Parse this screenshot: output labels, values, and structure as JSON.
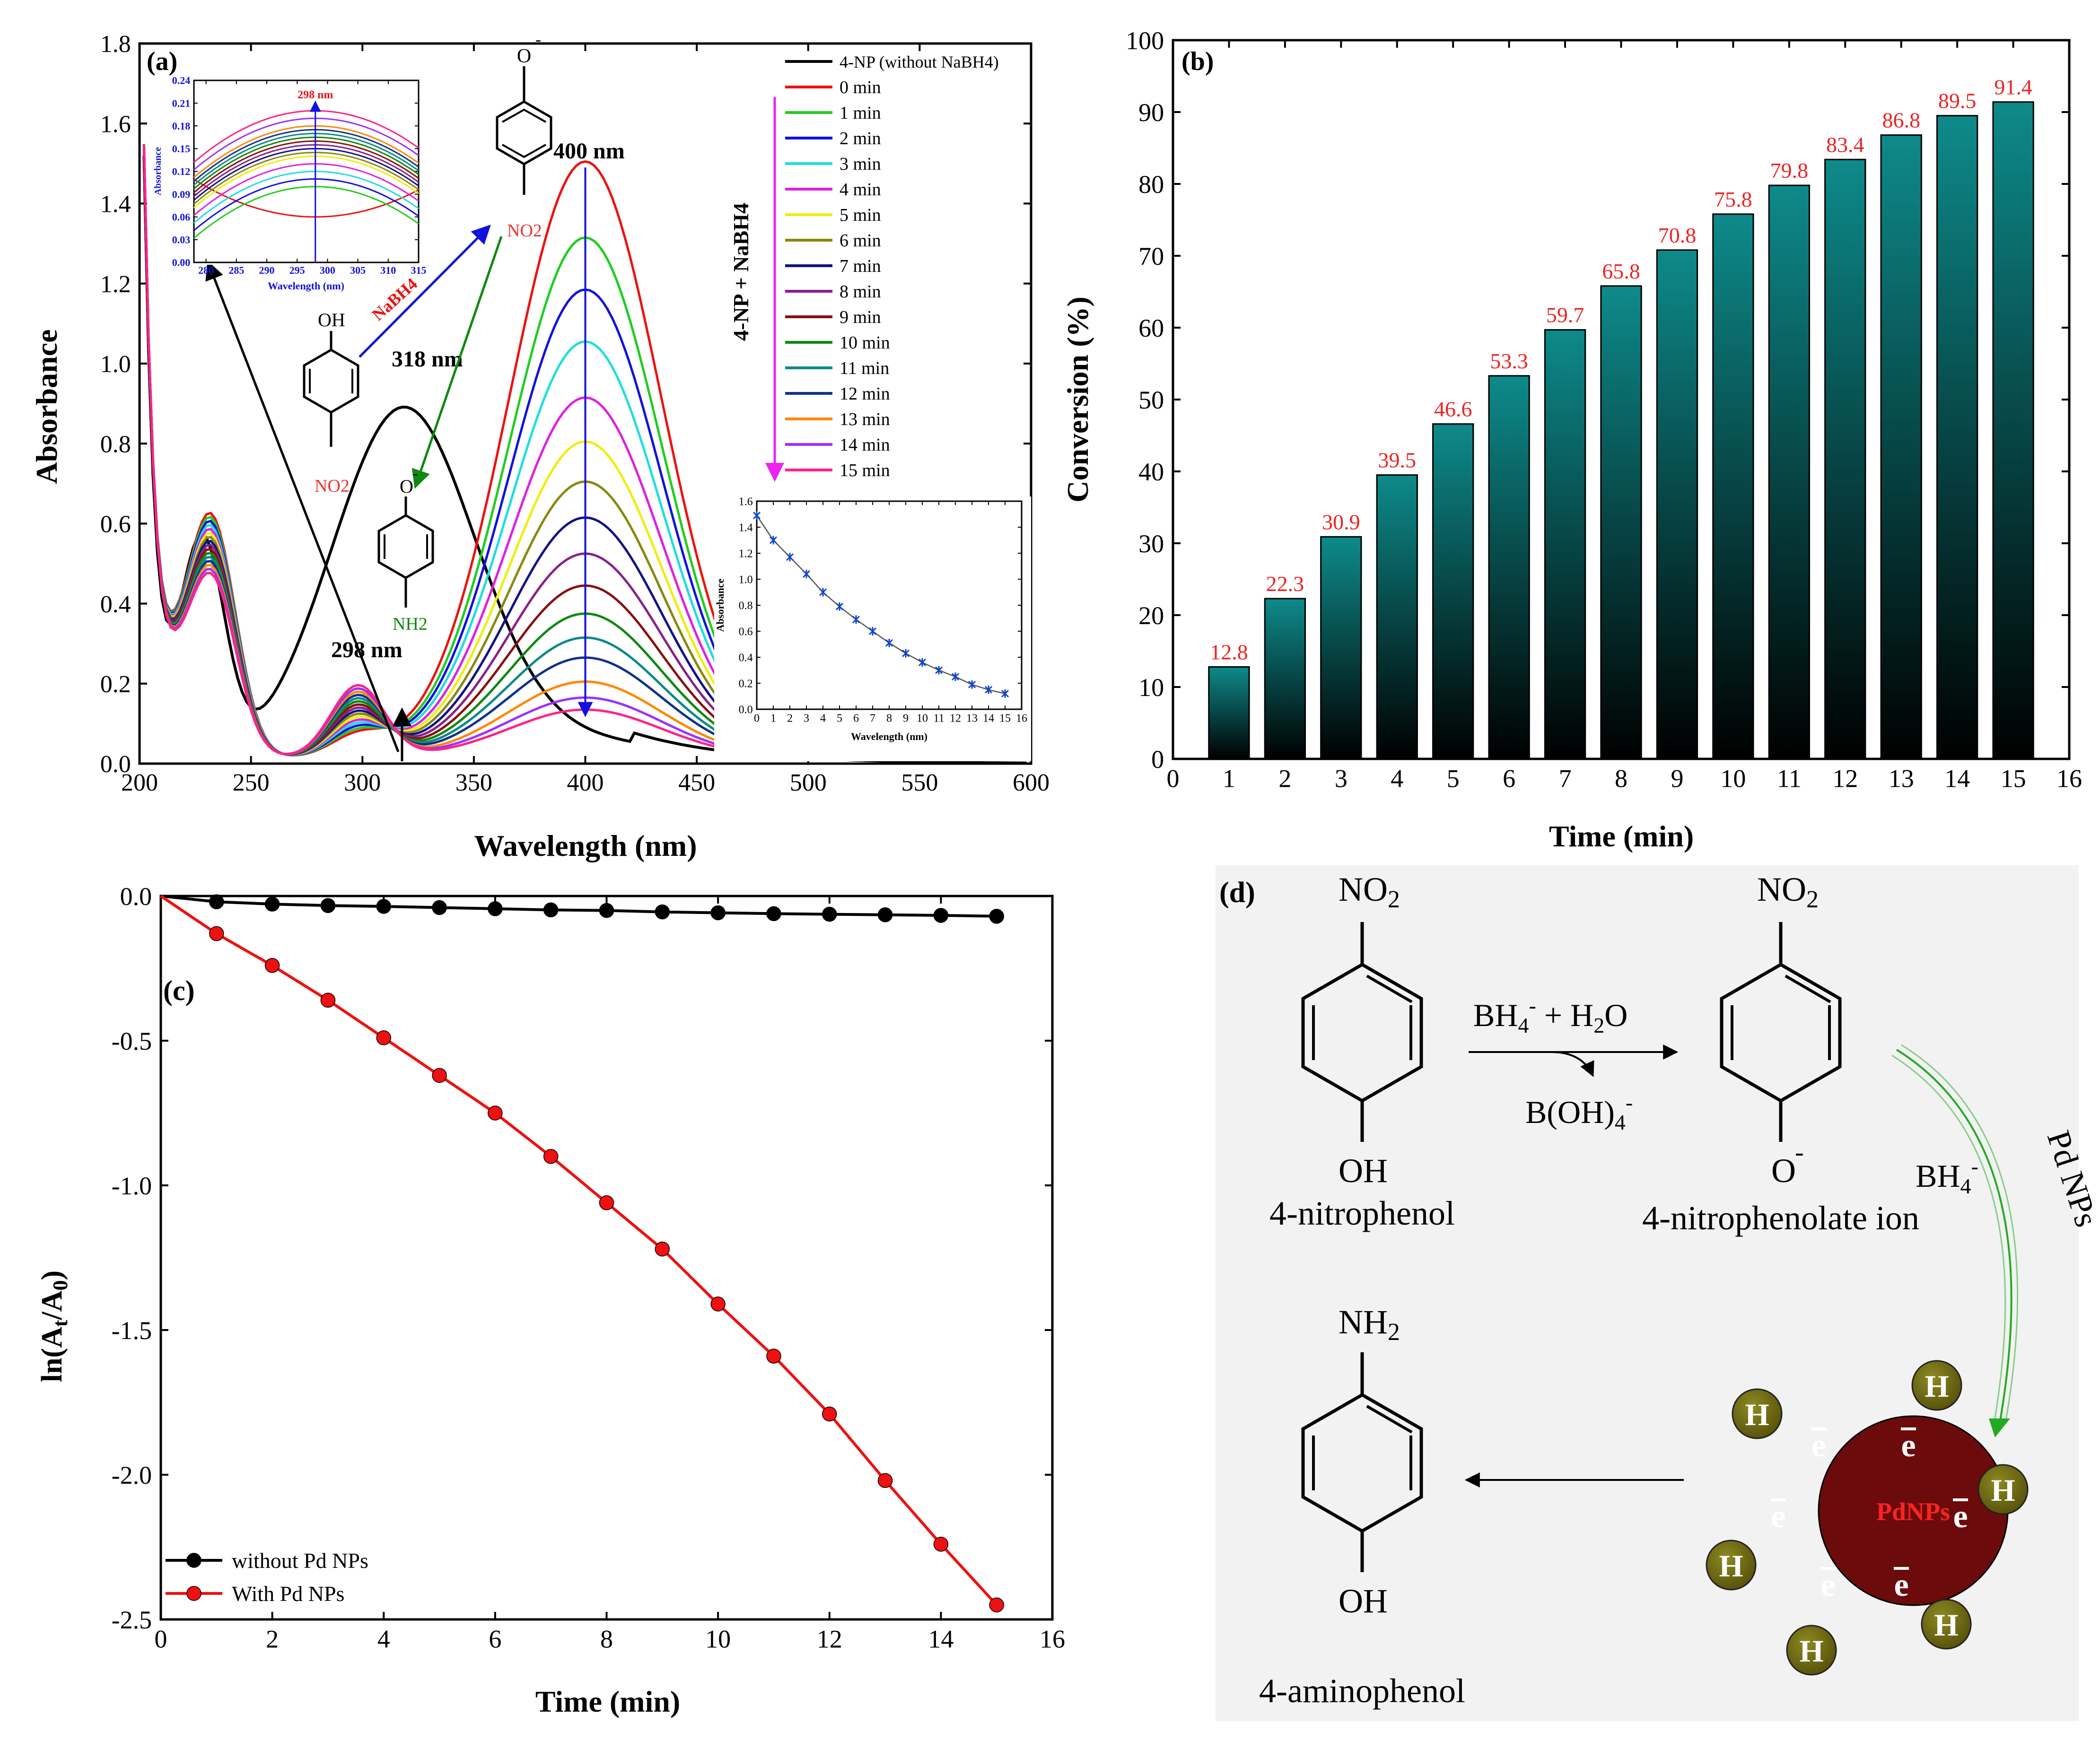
{
  "colors": {
    "bar_top": "#0e8a8a",
    "bar_bottom": "#000000",
    "label_red": "#ee2222",
    "scheme_bg": "#f2f2f2",
    "pd_sphere": "#6b0b0b",
    "h_circle": "#6f6a0e"
  },
  "chart_data": [
    {
      "panel": "(a)",
      "type": "line",
      "xlabel": "Wavelength (nm)",
      "ylabel": "Absorbance",
      "xlim": [
        200,
        600
      ],
      "ylim": [
        0.0,
        1.8
      ],
      "xticks": [
        "200",
        "250",
        "300",
        "350",
        "400",
        "450",
        "500",
        "550",
        "600"
      ],
      "yticks": [
        "0.0",
        "0.2",
        "0.4",
        "0.6",
        "0.8",
        "1.0",
        "1.2",
        "1.4",
        "1.6",
        "1.8"
      ],
      "legend_title": "4-NP + NaBH4",
      "series": [
        {
          "name": "4-NP (without NaBH4)",
          "color": "#000000",
          "peak400": 0.07
        },
        {
          "name": "0 min",
          "color": "#ee1111",
          "peak400": 1.49
        },
        {
          "name": "1 min",
          "color": "#22cc22",
          "peak400": 1.3
        },
        {
          "name": "2 min",
          "color": "#1111dd",
          "peak400": 1.17
        },
        {
          "name": "3 min",
          "color": "#22dddd",
          "peak400": 1.04
        },
        {
          "name": "4 min",
          "color": "#dd22dd",
          "peak400": 0.9
        },
        {
          "name": "5 min",
          "color": "#eeee11",
          "peak400": 0.79
        },
        {
          "name": "6 min",
          "color": "#888811",
          "peak400": 0.69
        },
        {
          "name": "7 min",
          "color": "#111188",
          "peak400": 0.6
        },
        {
          "name": "8 min",
          "color": "#882288",
          "peak400": 0.51
        },
        {
          "name": "9 min",
          "color": "#881111",
          "peak400": 0.43
        },
        {
          "name": "10 min",
          "color": "#118811",
          "peak400": 0.36
        },
        {
          "name": "11 min",
          "color": "#118888",
          "peak400": 0.3
        },
        {
          "name": "12 min",
          "color": "#113388",
          "peak400": 0.25
        },
        {
          "name": "13 min",
          "color": "#ff8800",
          "peak400": 0.19
        },
        {
          "name": "14 min",
          "color": "#9933ff",
          "peak400": 0.15
        },
        {
          "name": "15 min",
          "color": "#ff2288",
          "peak400": 0.12
        }
      ],
      "annotations": [
        "400 nm",
        "318 nm",
        "298 nm",
        "NaBH4"
      ],
      "structures": {
        "top_sub": "O",
        "top_sign": "-",
        "top_group": "NO2",
        "left_top": "OH",
        "left_group": "NO2",
        "mid_top": "O",
        "mid_sign": "-",
        "mid_group": "NH2"
      },
      "inset_left": {
        "title": "298 nm",
        "xlabel": "Wavelength (nm)",
        "ylabel": "Absorbance",
        "xlim": [
          278,
          315
        ],
        "ylim": [
          0.0,
          0.24
        ],
        "xticks": [
          "280",
          "285",
          "290",
          "295",
          "300",
          "305",
          "310",
          "315"
        ],
        "yticks": [
          "0.00",
          "0.03",
          "0.06",
          "0.09",
          "0.12",
          "0.15",
          "0.18",
          "0.21",
          "0.24"
        ],
        "peaks": [
          0.06,
          0.1,
          0.11,
          0.12,
          0.13,
          0.14,
          0.145,
          0.15,
          0.155,
          0.16,
          0.165,
          0.17,
          0.175,
          0.18,
          0.19,
          0.2
        ]
      },
      "inset_right": {
        "xlabel": "Wavelength (nm)",
        "ylabel": "Absorbance",
        "xlim": [
          0,
          16
        ],
        "ylim": [
          0.0,
          1.6
        ],
        "xticks": [
          "0",
          "1",
          "2",
          "3",
          "4",
          "5",
          "6",
          "7",
          "8",
          "9",
          "10",
          "11",
          "12",
          "13",
          "14",
          "15",
          "16"
        ],
        "yticks": [
          "0.0",
          "0.2",
          "0.4",
          "0.6",
          "0.8",
          "1.0",
          "1.2",
          "1.4",
          "1.6"
        ],
        "x": [
          0,
          1,
          2,
          3,
          4,
          5,
          6,
          7,
          8,
          9,
          10,
          11,
          12,
          13,
          14,
          15
        ],
        "y": [
          1.49,
          1.3,
          1.17,
          1.04,
          0.9,
          0.79,
          0.69,
          0.6,
          0.51,
          0.43,
          0.36,
          0.3,
          0.25,
          0.19,
          0.15,
          0.12
        ]
      }
    },
    {
      "panel": "(b)",
      "type": "bar",
      "xlabel": "Time (min)",
      "ylabel": "Conversion (%)",
      "xlim": [
        0,
        16
      ],
      "ylim": [
        0,
        100
      ],
      "xticks": [
        "0",
        "1",
        "2",
        "3",
        "4",
        "5",
        "6",
        "7",
        "8",
        "9",
        "10",
        "11",
        "12",
        "13",
        "14",
        "15",
        "16"
      ],
      "yticks": [
        "0",
        "10",
        "20",
        "30",
        "40",
        "50",
        "60",
        "70",
        "80",
        "90",
        "100"
      ],
      "categories": [
        1,
        2,
        3,
        4,
        5,
        6,
        7,
        8,
        9,
        10,
        11,
        12,
        13,
        14,
        15
      ],
      "values": [
        12.8,
        22.3,
        30.9,
        39.5,
        46.6,
        53.3,
        59.7,
        65.8,
        70.8,
        75.8,
        79.8,
        83.4,
        86.8,
        89.5,
        91.4
      ],
      "value_labels": [
        "12.8",
        "22.3",
        "30.9",
        "39.5",
        "46.6",
        "53.3",
        "59.7",
        "65.8",
        "70.8",
        "75.8",
        "79.8",
        "83.4",
        "86.8",
        "89.5",
        "91.4"
      ]
    },
    {
      "panel": "(c)",
      "type": "line",
      "xlabel": "Time (min)",
      "ylabel": "ln(At/A0)",
      "xlim": [
        0,
        16
      ],
      "ylim": [
        -2.5,
        0.0
      ],
      "xticks": [
        "0",
        "2",
        "4",
        "6",
        "8",
        "10",
        "12",
        "14",
        "16"
      ],
      "yticks": [
        "0.0",
        "-0.5",
        "-1.0",
        "-1.5",
        "-2.0",
        "-2.5"
      ],
      "series": [
        {
          "name": "without Pd NPs",
          "color": "#000000",
          "x": [
            0,
            1,
            2,
            3,
            4,
            5,
            6,
            7,
            8,
            9,
            10,
            11,
            12,
            13,
            14,
            15
          ],
          "y": [
            0,
            -0.02,
            -0.028,
            -0.033,
            -0.036,
            -0.04,
            -0.044,
            -0.048,
            -0.05,
            -0.055,
            -0.058,
            -0.061,
            -0.063,
            -0.065,
            -0.067,
            -0.07
          ]
        },
        {
          "name": "With Pd NPs",
          "color": "#ee1111",
          "x": [
            0,
            1,
            2,
            3,
            4,
            5,
            6,
            7,
            8,
            9,
            10,
            11,
            12,
            13,
            14,
            15
          ],
          "y": [
            0,
            -0.13,
            -0.24,
            -0.36,
            -0.49,
            -0.62,
            -0.75,
            -0.9,
            -1.06,
            -1.22,
            -1.41,
            -1.59,
            -1.79,
            -2.02,
            -2.24,
            -2.45
          ]
        }
      ]
    }
  ],
  "scheme": {
    "panel": "(d)",
    "nitrophenol": {
      "top": "NO2",
      "bottom": "OH",
      "label": "4-nitrophenol"
    },
    "nitrophenolate": {
      "top": "NO2",
      "bottom": "O",
      "bottom_sign": "-",
      "label": "4-nitrophenolate ion"
    },
    "aminophenol": {
      "top": "NH2",
      "bottom": "OH",
      "label": "4-aminophenol"
    },
    "reagent_top": "BH4- + H2O",
    "reagent_bottom": "B(OH)4-",
    "reductant": "BH4-",
    "catalyst_curve": "Pd NPs",
    "sphere_label": "PdNPs",
    "electron": "e",
    "hydrogen": "H"
  }
}
